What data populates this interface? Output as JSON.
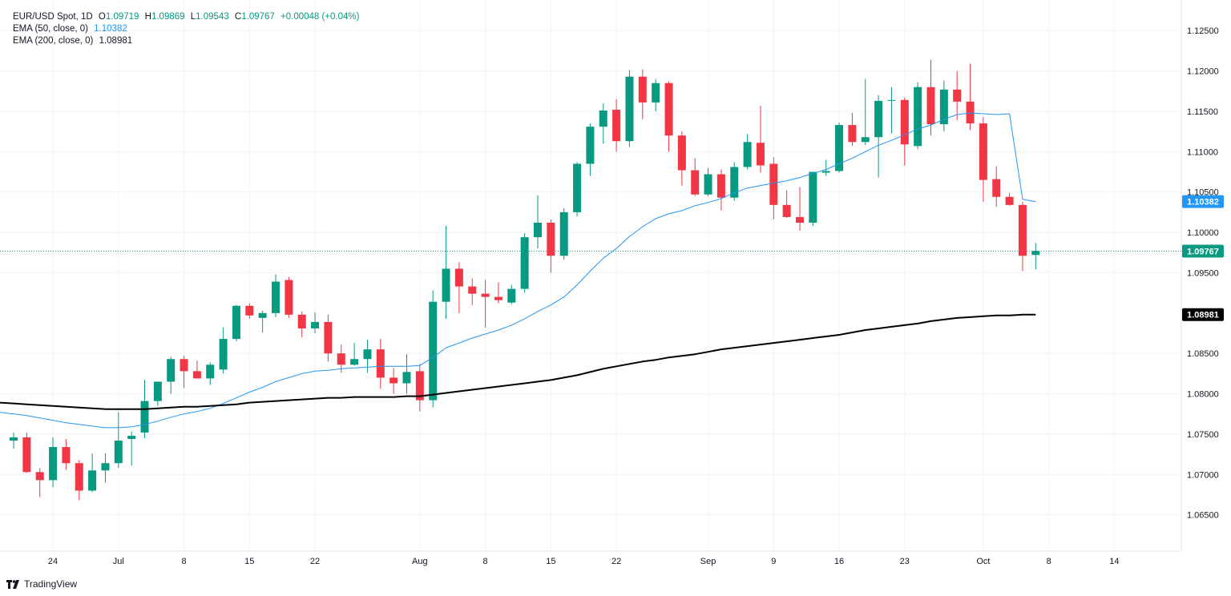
{
  "legend": {
    "symbol": "EUR/USD Spot, 1D",
    "o_label": "O",
    "o": "1.09719",
    "h_label": "H",
    "h": "1.09869",
    "l_label": "L",
    "l": "1.09543",
    "c_label": "C",
    "c": "1.09767",
    "change": "+0.00048 (+0.04%)",
    "ema50_label": "EMA (50, close, 0)",
    "ema50_value": "1.10382",
    "ema200_label": "EMA (200, close, 0)",
    "ema200_value": "1.08981"
  },
  "branding": {
    "text": "TradingView"
  },
  "colors": {
    "up": "#089981",
    "down": "#f23645",
    "ema50": "#2196f3",
    "ema200": "#000000",
    "grid": "#f0f3fa",
    "text": "#131722",
    "badge_price": "#089981"
  },
  "chart_data": {
    "type": "candlestick",
    "title": "EUR/USD Spot, 1D",
    "ylim": [
      1.0605,
      1.128
    ],
    "y_ticks": [
      "1.12500",
      "1.12000",
      "1.11500",
      "1.11000",
      "1.10500",
      "1.10000",
      "1.09500",
      "1.08500",
      "1.08000",
      "1.07500",
      "1.07000",
      "1.06500"
    ],
    "x_ticks": [
      {
        "label": "24",
        "idx": 3
      },
      {
        "label": "Jul",
        "idx": 8
      },
      {
        "label": "8",
        "idx": 13
      },
      {
        "label": "15",
        "idx": 18
      },
      {
        "label": "22",
        "idx": 23
      },
      {
        "label": "Aug",
        "idx": 31
      },
      {
        "label": "8",
        "idx": 36
      },
      {
        "label": "15",
        "idx": 41
      },
      {
        "label": "22",
        "idx": 46
      },
      {
        "label": "Sep",
        "idx": 53
      },
      {
        "label": "9",
        "idx": 58
      },
      {
        "label": "16",
        "idx": 63
      },
      {
        "label": "23",
        "idx": 68
      },
      {
        "label": "Oct",
        "idx": 74
      },
      {
        "label": "8",
        "idx": 79
      },
      {
        "label": "14",
        "idx": 84
      }
    ],
    "candles": [
      {
        "o": 1.0742,
        "h": 1.0752,
        "l": 1.0732,
        "c": 1.0746
      },
      {
        "o": 1.0746,
        "h": 1.0752,
        "l": 1.0702,
        "c": 1.0703
      },
      {
        "o": 1.0703,
        "h": 1.0708,
        "l": 1.0672,
        "c": 1.0693
      },
      {
        "o": 1.0693,
        "h": 1.0746,
        "l": 1.0684,
        "c": 1.0734
      },
      {
        "o": 1.0734,
        "h": 1.0744,
        "l": 1.0706,
        "c": 1.0714
      },
      {
        "o": 1.0714,
        "h": 1.0718,
        "l": 1.0668,
        "c": 1.068
      },
      {
        "o": 1.068,
        "h": 1.0726,
        "l": 1.0678,
        "c": 1.0705
      },
      {
        "o": 1.0705,
        "h": 1.0726,
        "l": 1.069,
        "c": 1.0714
      },
      {
        "o": 1.0714,
        "h": 1.0777,
        "l": 1.0708,
        "c": 1.0742
      },
      {
        "o": 1.0744,
        "h": 1.0753,
        "l": 1.0711,
        "c": 1.0748
      },
      {
        "o": 1.0752,
        "h": 1.0817,
        "l": 1.0745,
        "c": 1.0791
      },
      {
        "o": 1.0791,
        "h": 1.0812,
        "l": 1.0785,
        "c": 1.0815
      },
      {
        "o": 1.0815,
        "h": 1.0846,
        "l": 1.08,
        "c": 1.0843
      },
      {
        "o": 1.0843,
        "h": 1.0847,
        "l": 1.0807,
        "c": 1.0828
      },
      {
        "o": 1.0828,
        "h": 1.0841,
        "l": 1.082,
        "c": 1.0819
      },
      {
        "o": 1.0819,
        "h": 1.0839,
        "l": 1.0811,
        "c": 1.0836
      },
      {
        "o": 1.083,
        "h": 1.0882,
        "l": 1.0825,
        "c": 1.0868
      },
      {
        "o": 1.0868,
        "h": 1.091,
        "l": 1.0865,
        "c": 1.0909
      },
      {
        "o": 1.0909,
        "h": 1.0912,
        "l": 1.0893,
        "c": 1.0897
      },
      {
        "o": 1.0894,
        "h": 1.0903,
        "l": 1.0876,
        "c": 1.09
      },
      {
        "o": 1.09,
        "h": 1.0948,
        "l": 1.0895,
        "c": 1.0939
      },
      {
        "o": 1.0941,
        "h": 1.0945,
        "l": 1.0894,
        "c": 1.0898
      },
      {
        "o": 1.0898,
        "h": 1.0902,
        "l": 1.087,
        "c": 1.0881
      },
      {
        "o": 1.0881,
        "h": 1.0901,
        "l": 1.0875,
        "c": 1.0889
      },
      {
        "o": 1.0889,
        "h": 1.0898,
        "l": 1.084,
        "c": 1.085
      },
      {
        "o": 1.085,
        "h": 1.0861,
        "l": 1.0826,
        "c": 1.0836
      },
      {
        "o": 1.0836,
        "h": 1.0863,
        "l": 1.0835,
        "c": 1.0843
      },
      {
        "o": 1.0843,
        "h": 1.0867,
        "l": 1.0826,
        "c": 1.0855
      },
      {
        "o": 1.0855,
        "h": 1.0868,
        "l": 1.0806,
        "c": 1.082
      },
      {
        "o": 1.082,
        "h": 1.0832,
        "l": 1.08,
        "c": 1.0813
      },
      {
        "o": 1.0813,
        "h": 1.0849,
        "l": 1.08,
        "c": 1.0827
      },
      {
        "o": 1.0828,
        "h": 1.0837,
        "l": 1.0778,
        "c": 1.0792
      },
      {
        "o": 1.0792,
        "h": 1.0928,
        "l": 1.0783,
        "c": 1.0914
      },
      {
        "o": 1.0914,
        "h": 1.1008,
        "l": 1.0893,
        "c": 1.0955
      },
      {
        "o": 1.0955,
        "h": 1.0963,
        "l": 1.09,
        "c": 1.0933
      },
      {
        "o": 1.0933,
        "h": 1.0943,
        "l": 1.091,
        "c": 1.0924
      },
      {
        "o": 1.0924,
        "h": 1.0941,
        "l": 1.0882,
        "c": 1.092
      },
      {
        "o": 1.092,
        "h": 1.0938,
        "l": 1.0912,
        "c": 1.0916
      },
      {
        "o": 1.0913,
        "h": 1.0935,
        "l": 1.0911,
        "c": 1.093
      },
      {
        "o": 1.093,
        "h": 1.0999,
        "l": 1.0925,
        "c": 1.0994
      },
      {
        "o": 1.0994,
        "h": 1.1046,
        "l": 1.098,
        "c": 1.1012
      },
      {
        "o": 1.1012,
        "h": 1.1016,
        "l": 1.095,
        "c": 1.0971
      },
      {
        "o": 1.0971,
        "h": 1.103,
        "l": 1.0966,
        "c": 1.1025
      },
      {
        "o": 1.1025,
        "h": 1.1087,
        "l": 1.102,
        "c": 1.1085
      },
      {
        "o": 1.1085,
        "h": 1.1135,
        "l": 1.107,
        "c": 1.1131
      },
      {
        "o": 1.1131,
        "h": 1.116,
        "l": 1.111,
        "c": 1.1151
      },
      {
        "o": 1.1152,
        "h": 1.1165,
        "l": 1.11,
        "c": 1.1113
      },
      {
        "o": 1.1113,
        "h": 1.1201,
        "l": 1.1106,
        "c": 1.1193
      },
      {
        "o": 1.1193,
        "h": 1.1202,
        "l": 1.114,
        "c": 1.1161
      },
      {
        "o": 1.1161,
        "h": 1.119,
        "l": 1.115,
        "c": 1.1185
      },
      {
        "o": 1.1185,
        "h": 1.1187,
        "l": 1.11,
        "c": 1.112
      },
      {
        "o": 1.112,
        "h": 1.1125,
        "l": 1.1058,
        "c": 1.1077
      },
      {
        "o": 1.1077,
        "h": 1.1092,
        "l": 1.1045,
        "c": 1.1047
      },
      {
        "o": 1.1047,
        "h": 1.108,
        "l": 1.1045,
        "c": 1.1072
      },
      {
        "o": 1.1072,
        "h": 1.1078,
        "l": 1.1027,
        "c": 1.1043
      },
      {
        "o": 1.1043,
        "h": 1.1087,
        "l": 1.1039,
        "c": 1.1081
      },
      {
        "o": 1.1081,
        "h": 1.1122,
        "l": 1.1078,
        "c": 1.1112
      },
      {
        "o": 1.1111,
        "h": 1.1157,
        "l": 1.1074,
        "c": 1.1083
      },
      {
        "o": 1.1085,
        "h": 1.1093,
        "l": 1.1016,
        "c": 1.1034
      },
      {
        "o": 1.1034,
        "h": 1.1052,
        "l": 1.1018,
        "c": 1.1019
      },
      {
        "o": 1.1019,
        "h": 1.1056,
        "l": 1.1002,
        "c": 1.1012
      },
      {
        "o": 1.1012,
        "h": 1.1074,
        "l": 1.1008,
        "c": 1.1075
      },
      {
        "o": 1.1074,
        "h": 1.109,
        "l": 1.107,
        "c": 1.1076
      },
      {
        "o": 1.1076,
        "h": 1.1136,
        "l": 1.1074,
        "c": 1.1133
      },
      {
        "o": 1.1133,
        "h": 1.1148,
        "l": 1.1107,
        "c": 1.1112
      },
      {
        "o": 1.1112,
        "h": 1.119,
        "l": 1.1108,
        "c": 1.1118
      },
      {
        "o": 1.1118,
        "h": 1.117,
        "l": 1.1068,
        "c": 1.1163
      },
      {
        "o": 1.1163,
        "h": 1.118,
        "l": 1.1123,
        "c": 1.1164
      },
      {
        "o": 1.1164,
        "h": 1.1167,
        "l": 1.1083,
        "c": 1.1109
      },
      {
        "o": 1.1107,
        "h": 1.1186,
        "l": 1.1103,
        "c": 1.118
      },
      {
        "o": 1.118,
        "h": 1.1214,
        "l": 1.112,
        "c": 1.1134
      },
      {
        "o": 1.1134,
        "h": 1.1188,
        "l": 1.1125,
        "c": 1.1177
      },
      {
        "o": 1.1177,
        "h": 1.12,
        "l": 1.1139,
        "c": 1.1162
      },
      {
        "o": 1.1162,
        "h": 1.1209,
        "l": 1.1127,
        "c": 1.1135
      },
      {
        "o": 1.1135,
        "h": 1.1143,
        "l": 1.1038,
        "c": 1.1065
      },
      {
        "o": 1.1066,
        "h": 1.1082,
        "l": 1.1032,
        "c": 1.1044
      },
      {
        "o": 1.1044,
        "h": 1.1049,
        "l": 1.1033,
        "c": 1.1034
      },
      {
        "o": 1.1034,
        "h": 1.1038,
        "l": 1.0952,
        "c": 1.0971
      },
      {
        "o": 1.0972,
        "h": 1.0987,
        "l": 1.0954,
        "c": 1.0977
      }
    ],
    "ema50": [
      1.0775,
      1.0773,
      1.077,
      1.0767,
      1.0764,
      1.0762,
      1.076,
      1.0758,
      1.0758,
      1.0759,
      1.0762,
      1.0766,
      1.0771,
      1.0775,
      1.0778,
      1.0782,
      1.0788,
      1.0795,
      1.0802,
      1.0808,
      1.0815,
      1.082,
      1.0825,
      1.0828,
      1.0829,
      1.0831,
      1.0832,
      1.0833,
      1.0834,
      1.0834,
      1.0834,
      1.0835,
      1.0845,
      1.0857,
      1.0863,
      1.0869,
      1.0874,
      1.0879,
      1.0885,
      1.0893,
      1.0902,
      1.091,
      1.092,
      1.0935,
      1.0952,
      1.0968,
      1.098,
      1.0995,
      1.1007,
      1.1017,
      1.1023,
      1.1027,
      1.1033,
      1.1037,
      1.1042,
      1.1049,
      1.1055,
      1.1058,
      1.1061,
      1.1064,
      1.1068,
      1.1073,
      1.1078,
      1.1085,
      1.1092,
      1.11,
      1.1108,
      1.1114,
      1.1121,
      1.1128,
      1.1133,
      1.114,
      1.1146,
      1.1148,
      1.1147,
      1.1146,
      1.1147,
      1.1041,
      1.1038
    ],
    "ema200": [
      1.0788,
      1.0787,
      1.0786,
      1.0785,
      1.0784,
      1.0783,
      1.0782,
      1.0781,
      1.0781,
      1.0781,
      1.0781,
      1.0782,
      1.0783,
      1.0784,
      1.0784,
      1.0785,
      1.0786,
      1.0787,
      1.0789,
      1.079,
      1.0791,
      1.0792,
      1.0793,
      1.0794,
      1.0795,
      1.0795,
      1.0796,
      1.0796,
      1.0796,
      1.0796,
      1.0797,
      1.0797,
      1.0799,
      1.0801,
      1.0803,
      1.0805,
      1.0807,
      1.0809,
      1.0811,
      1.0813,
      1.0815,
      1.0817,
      1.082,
      1.0823,
      1.0827,
      1.0831,
      1.0834,
      1.0837,
      1.084,
      1.0842,
      1.0845,
      1.0847,
      1.0849,
      1.0852,
      1.0855,
      1.0857,
      1.0859,
      1.0861,
      1.0863,
      1.0865,
      1.0867,
      1.0869,
      1.0871,
      1.0873,
      1.0876,
      1.0879,
      1.0881,
      1.0883,
      1.0885,
      1.0887,
      1.089,
      1.0892,
      1.0894,
      1.0895,
      1.0896,
      1.0897,
      1.0897,
      1.0898,
      1.0898
    ],
    "ema50_badge": "1.10382",
    "ema200_badge": "1.08981",
    "price_badge": "1.09767",
    "last_price": 1.09767
  }
}
